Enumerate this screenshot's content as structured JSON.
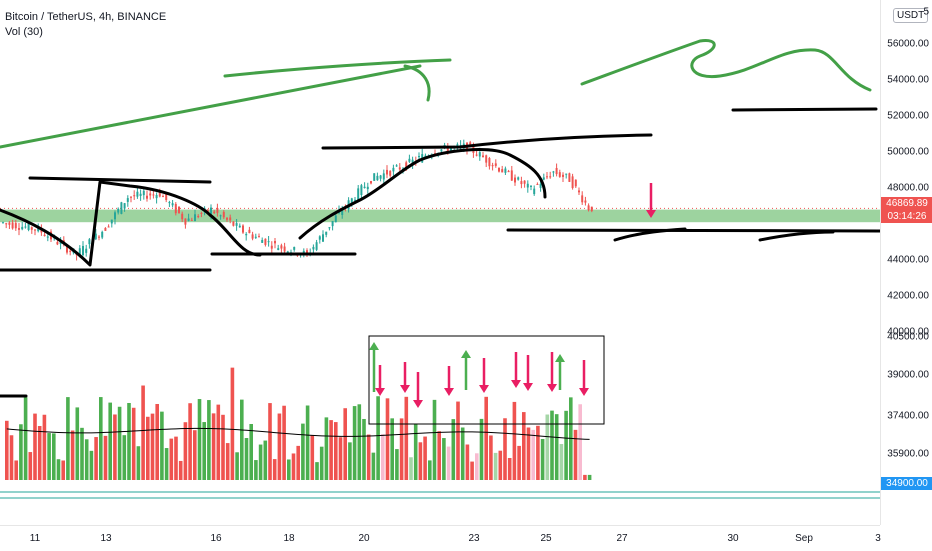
{
  "header": {
    "title": "Bitcoin / TetherUS, 4h, BINANCE",
    "volume_label": "Vol (30)"
  },
  "price_scale": {
    "currency": "USDT",
    "last_price": "46869.89",
    "countdown": "03:14:26",
    "volume_badge": "34900.00"
  },
  "colors": {
    "up": "#26a69a",
    "down": "#ef5350",
    "vol_up": "#4caf50",
    "vol_down": "#ef5350",
    "zone": "#4caf50",
    "drawing_green": "#43a047",
    "drawing_black": "#000000",
    "arrow_red": "#e91e63"
  },
  "chart_data": {
    "type": "candlestick",
    "title": "Bitcoin / TetherUS, 4h, BINANCE",
    "price_ticks": [
      "56000.00",
      "54000.00",
      "52000.00",
      "50000.00",
      "48000.00",
      "44000.00",
      "42000.00",
      "40000.00"
    ],
    "volume_ticks": [
      "40500.00",
      "39000.00",
      "37400.00",
      "35900.00"
    ],
    "x_ticks": [
      "11",
      "13",
      "16",
      "18",
      "20",
      "23",
      "25",
      "27",
      "30",
      "Sep",
      "3"
    ],
    "last_price": 46869.89,
    "support_zone": [
      46100,
      46800
    ],
    "price_ylim": [
      40000,
      56000
    ],
    "volume_ylim": [
      34900,
      40500
    ],
    "grid": false
  }
}
